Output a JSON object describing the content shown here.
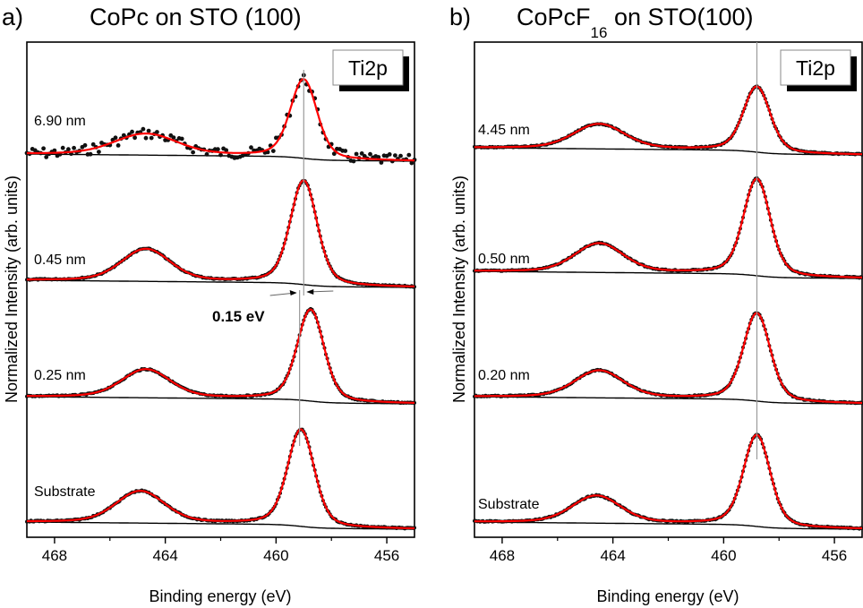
{
  "chart_data": [
    {
      "type": "line",
      "panel_letter": "a)",
      "title": "CoPc on STO (100)",
      "title_sub": "",
      "title_suffix": "",
      "xlabel": "Binding energy (eV)",
      "ylabel": "Normalized Intensity (arb. units)",
      "xlim": [
        469.0,
        455.0
      ],
      "x_ticks": [
        468,
        464,
        460,
        456
      ],
      "x_tick_labels": [
        "468",
        "464",
        "460",
        "456"
      ],
      "x_minor_ticks": [
        466,
        462,
        458
      ],
      "inset_label": "Ti2p",
      "reference_line_eV": 459.0,
      "reference_line_2_eV": 459.15,
      "annotation": {
        "text": "0.15 eV",
        "between_eV": [
          459.15,
          459.0
        ]
      },
      "series": [
        {
          "name": "6.90 nm",
          "baseline": 0.0,
          "main_peak_eV": 459.0,
          "main_height": 1.0,
          "main_width": 0.55,
          "secondary_peak_eV": 464.7,
          "secondary_height": 0.27,
          "secondary_width": 1.3,
          "noise": true,
          "offset": 3
        },
        {
          "name": "0.45 nm",
          "baseline": 0.0,
          "main_peak_eV": 459.0,
          "main_height": 1.0,
          "main_width": 0.55,
          "secondary_peak_eV": 464.7,
          "secondary_height": 0.31,
          "secondary_width": 1.0,
          "noise": false,
          "offset": 2
        },
        {
          "name": "0.25 nm",
          "baseline": 0.0,
          "main_peak_eV": 458.75,
          "main_height": 1.0,
          "main_width": 0.55,
          "secondary_peak_eV": 464.7,
          "secondary_height": 0.31,
          "secondary_width": 1.0,
          "noise": false,
          "offset": 1
        },
        {
          "name": "Substrate",
          "baseline": 0.0,
          "main_peak_eV": 459.1,
          "main_height": 1.0,
          "main_width": 0.55,
          "secondary_peak_eV": 464.9,
          "secondary_height": 0.33,
          "secondary_width": 1.0,
          "noise": false,
          "offset": 0
        }
      ]
    },
    {
      "type": "line",
      "panel_letter": "b)",
      "title": "CoPcF",
      "title_sub": "16",
      "title_suffix": " on STO(100)",
      "xlabel": "Binding energy (eV)",
      "ylabel": "Normalized Intensity (arb. units)",
      "xlim": [
        469.0,
        455.0
      ],
      "x_ticks": [
        468,
        464,
        460,
        456
      ],
      "x_tick_labels": [
        "468",
        "464",
        "460",
        "456"
      ],
      "x_minor_ticks": [
        466,
        462,
        458
      ],
      "inset_label": "Ti2p",
      "reference_line_eV": 458.8,
      "series": [
        {
          "name": "4.45 nm",
          "baseline": 0.0,
          "main_peak_eV": 458.8,
          "main_height": 1.0,
          "main_width": 0.55,
          "secondary_peak_eV": 464.5,
          "secondary_height": 0.38,
          "secondary_width": 1.05,
          "noise": false,
          "offset": 3
        },
        {
          "name": "0.50 nm",
          "baseline": 0.0,
          "main_peak_eV": 458.8,
          "main_height": 1.0,
          "main_width": 0.55,
          "secondary_peak_eV": 464.5,
          "secondary_height": 0.3,
          "secondary_width": 1.0,
          "noise": false,
          "offset": 2
        },
        {
          "name": "0.20 nm",
          "baseline": 0.0,
          "main_peak_eV": 458.8,
          "main_height": 1.0,
          "main_width": 0.55,
          "secondary_peak_eV": 464.5,
          "secondary_height": 0.31,
          "secondary_width": 1.0,
          "noise": false,
          "offset": 1
        },
        {
          "name": "Substrate",
          "baseline": 0.0,
          "main_peak_eV": 458.8,
          "main_height": 1.0,
          "main_width": 0.55,
          "secondary_peak_eV": 464.6,
          "secondary_height": 0.3,
          "secondary_width": 1.0,
          "noise": false,
          "offset": 0
        }
      ]
    }
  ],
  "colors": {
    "fit": "#ff0000",
    "data": "#111111",
    "background_line": "#000000",
    "reference_line": "#9a9a9a"
  }
}
